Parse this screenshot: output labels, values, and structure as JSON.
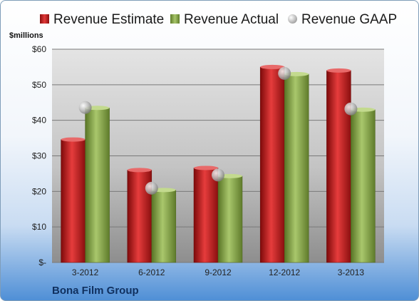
{
  "legend": {
    "estimate_label": "Revenue Estimate",
    "actual_label": "Revenue Actual",
    "gaap_label": "Revenue GAAP"
  },
  "units_label": "$millions",
  "company_label": "Bona Film Group",
  "colors": {
    "estimate": "#c8161d",
    "actual": "#8caa46",
    "gaap": "#b0b0b0"
  },
  "chart_data": {
    "type": "bar",
    "categories": [
      "3-2012",
      "6-2012",
      "9-2012",
      "12-2012",
      "3-2013"
    ],
    "series": [
      {
        "name": "Revenue Estimate",
        "values": [
          34.6,
          26.0,
          26.6,
          55.0,
          54.0
        ]
      },
      {
        "name": "Revenue Actual",
        "values": [
          43.5,
          20.4,
          24.3,
          53.0,
          43.0
        ]
      },
      {
        "name": "Revenue GAAP",
        "values": [
          43.6,
          20.9,
          24.6,
          53.2,
          43.2
        ]
      }
    ],
    "ylim": [
      0,
      60
    ],
    "yticks": [
      0,
      10,
      20,
      30,
      40,
      50,
      60
    ],
    "ytick_labels": [
      "$-",
      "$10",
      "$20",
      "$30",
      "$40",
      "$50",
      "$60"
    ],
    "grid": true,
    "legend_position": "top"
  }
}
